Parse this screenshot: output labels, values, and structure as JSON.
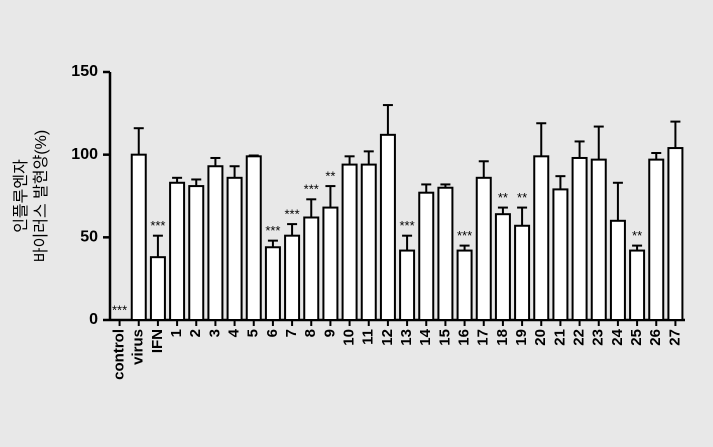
{
  "chart_data": {
    "type": "bar",
    "y_label": [
      "인플루엔자",
      "바이러스 발현양(%)"
    ],
    "categories": [
      "control",
      "virus",
      "IFN",
      "1",
      "2",
      "3",
      "4",
      "5",
      "6",
      "7",
      "8",
      "9",
      "10",
      "11",
      "12",
      "13",
      "14",
      "15",
      "16",
      "17",
      "18",
      "19",
      "20",
      "21",
      "22",
      "23",
      "24",
      "25",
      "26",
      "27"
    ],
    "values": [
      0,
      100,
      38,
      83,
      81,
      93,
      86,
      99,
      44,
      51,
      62,
      68,
      94,
      94,
      112,
      42,
      77,
      80,
      42,
      86,
      64,
      57,
      99,
      79,
      98,
      97,
      60,
      42,
      97,
      104
    ],
    "errors": [
      0,
      16,
      13,
      3,
      4,
      5,
      7,
      0.5,
      4,
      7,
      11,
      13,
      5,
      8,
      18,
      9,
      5,
      2,
      3,
      10,
      4,
      11,
      20,
      8,
      10,
      20,
      23,
      3,
      4,
      16
    ],
    "annotations": [
      "***",
      null,
      "***",
      null,
      null,
      null,
      null,
      null,
      "***",
      "***",
      "***",
      "**",
      null,
      null,
      null,
      "***",
      null,
      null,
      "***",
      null,
      "**",
      "**",
      null,
      null,
      null,
      null,
      null,
      "**",
      null,
      null
    ],
    "color": "#ffffff",
    "ylim": [
      0,
      150
    ],
    "yticks": [
      0,
      50,
      100,
      150
    ]
  }
}
